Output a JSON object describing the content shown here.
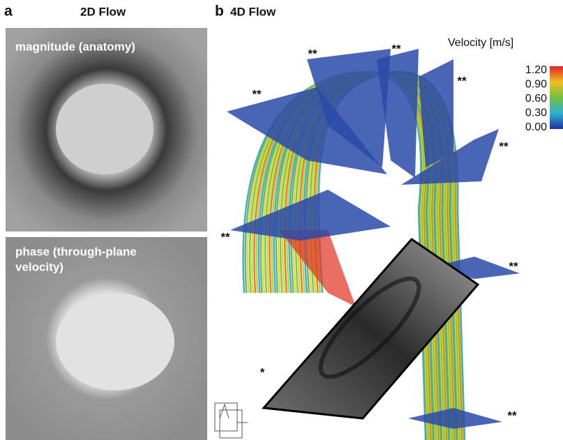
{
  "panel_a": {
    "letter": "a",
    "title": "2D Flow",
    "images": [
      {
        "label_lines": [
          "magnitude (anatomy)"
        ]
      },
      {
        "label_lines": [
          "phase (through-plane",
          "velocity)"
        ]
      }
    ]
  },
  "panel_b": {
    "letter": "b",
    "title": "4D Flow",
    "colorbar": {
      "title": "Velocity [m/s]",
      "ticks": [
        "1.20",
        "0.90",
        "0.60",
        "0.30",
        "0.00"
      ]
    },
    "annotations": [
      "**",
      "**",
      "**",
      "**",
      "**",
      "**",
      "**",
      "**",
      "*"
    ]
  }
}
